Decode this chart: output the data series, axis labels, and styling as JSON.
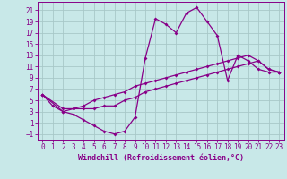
{
  "xlabel": "Windchill (Refroidissement éolien,°C)",
  "bg_color": "#c8e8e8",
  "line_color": "#880088",
  "grid_color": "#a8c8c8",
  "spine_color": "#880088",
  "xlim": [
    -0.5,
    23.5
  ],
  "ylim": [
    -2.0,
    22.5
  ],
  "xticks": [
    0,
    1,
    2,
    3,
    4,
    5,
    6,
    7,
    8,
    9,
    10,
    11,
    12,
    13,
    14,
    15,
    16,
    17,
    18,
    19,
    20,
    21,
    22,
    23
  ],
  "yticks": [
    -1,
    1,
    3,
    5,
    7,
    9,
    11,
    13,
    15,
    17,
    19,
    21
  ],
  "line1_x": [
    0,
    1,
    2,
    3,
    4,
    5,
    6,
    7,
    8,
    9,
    10,
    11,
    12,
    13,
    14,
    15,
    16,
    17,
    18,
    19,
    20,
    21,
    22,
    23
  ],
  "line1_y": [
    6,
    4,
    3,
    2.5,
    1.5,
    0.5,
    -0.5,
    -1,
    -0.5,
    2,
    12.5,
    19.5,
    18.5,
    17,
    20.5,
    21.5,
    19,
    16.5,
    8.5,
    13,
    12,
    10.5,
    10,
    10
  ],
  "line2_x": [
    0,
    2,
    3,
    4,
    5,
    6,
    7,
    8,
    9,
    10,
    11,
    12,
    13,
    14,
    15,
    16,
    17,
    18,
    19,
    20,
    21,
    22,
    23
  ],
  "line2_y": [
    6,
    3,
    3.5,
    4,
    5,
    5.5,
    6,
    6.5,
    7.5,
    8,
    8.5,
    9,
    9.5,
    10,
    10.5,
    11,
    11.5,
    12,
    12.5,
    13,
    12,
    10.5,
    10
  ],
  "line3_x": [
    0,
    2,
    3,
    4,
    5,
    6,
    7,
    8,
    9,
    10,
    11,
    12,
    13,
    14,
    15,
    16,
    17,
    18,
    19,
    20,
    21,
    22,
    23
  ],
  "line3_y": [
    6,
    3.5,
    3.5,
    3.5,
    3.5,
    4,
    4,
    5,
    5.5,
    6.5,
    7,
    7.5,
    8,
    8.5,
    9,
    9.5,
    10,
    10.5,
    11,
    11.5,
    12,
    10.5,
    10
  ],
  "marker": "D",
  "markersize": 2,
  "linewidth": 0.9,
  "xlabel_fontsize": 6,
  "tick_fontsize": 5.5
}
